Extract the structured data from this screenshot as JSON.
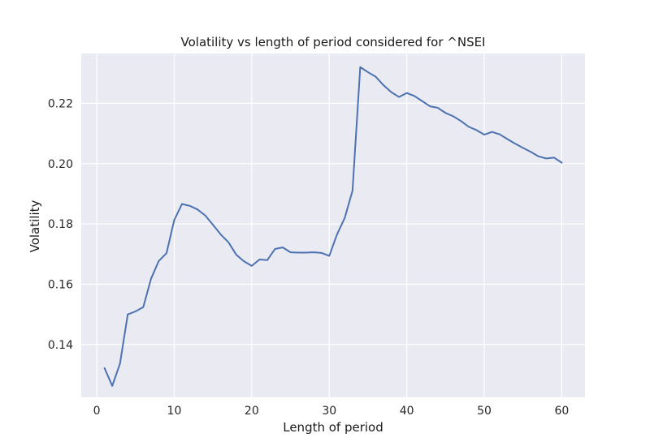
{
  "chart_data": {
    "type": "line",
    "title": "Volatility vs length of period considered for ^NSEI",
    "xlabel": "Length of period",
    "ylabel": "Volatility",
    "xlim": [
      -2,
      63
    ],
    "ylim": [
      0.1225,
      0.2365
    ],
    "xticks": [
      0,
      10,
      20,
      30,
      40,
      50,
      60
    ],
    "yticks": [
      0.14,
      0.16,
      0.18,
      0.2,
      0.22
    ],
    "ytick_labels": [
      "0.14",
      "0.16",
      "0.18",
      "0.20",
      "0.22"
    ],
    "grid": true,
    "colors": {
      "background": "#eaeaf2",
      "grid": "#ffffff",
      "series": "#4c72b0"
    },
    "series": [
      {
        "x": [
          1,
          2,
          3,
          4,
          5,
          6,
          7,
          8,
          9,
          10,
          11,
          12,
          13,
          14,
          15,
          16,
          17,
          18,
          19,
          20,
          21,
          22,
          23,
          24,
          25,
          26,
          27,
          28,
          29,
          30,
          31,
          32,
          33,
          34,
          35,
          36,
          37,
          38,
          39,
          40,
          41,
          42,
          43,
          44,
          45,
          46,
          47,
          48,
          49,
          50,
          51,
          52,
          53,
          54,
          55,
          56,
          57,
          58,
          59,
          60
        ],
        "values": [
          0.1322,
          0.1263,
          0.1337,
          0.15,
          0.151,
          0.1524,
          0.1618,
          0.1677,
          0.1703,
          0.1813,
          0.1866,
          0.186,
          0.1848,
          0.1828,
          0.1797,
          0.1765,
          0.1739,
          0.1698,
          0.1676,
          0.1661,
          0.1682,
          0.168,
          0.1717,
          0.1722,
          0.1706,
          0.1705,
          0.1705,
          0.1706,
          0.1704,
          0.1694,
          0.1765,
          0.182,
          0.191,
          0.232,
          0.2303,
          0.2288,
          0.226,
          0.2237,
          0.2221,
          0.2234,
          0.2224,
          0.2207,
          0.219,
          0.2185,
          0.2168,
          0.2157,
          0.2141,
          0.2122,
          0.2111,
          0.2096,
          0.2105,
          0.2097,
          0.2081,
          0.2066,
          0.2052,
          0.2039,
          0.2024,
          0.2017,
          0.202,
          0.2003
        ]
      }
    ]
  }
}
